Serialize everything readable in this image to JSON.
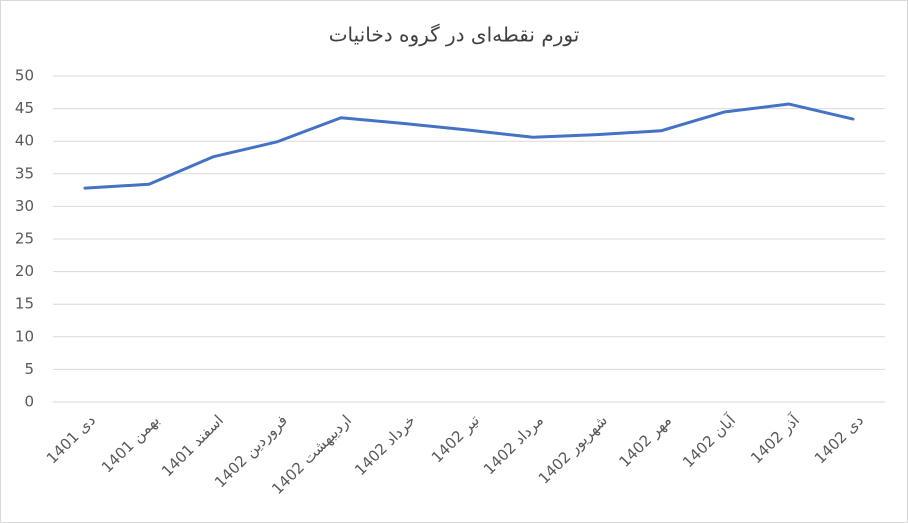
{
  "chart_data": {
    "type": "line",
    "title": "تورم نقطه‌ای در گروه دخانیات",
    "categories": [
      "دی 1401",
      "بهمن 1401",
      "اسفند 1401",
      "فروردین 1402",
      "اردیبهشت 1402",
      "خرداد 1402",
      "تیر 1402",
      "مرداد 1402",
      "شهریور 1402",
      "مهر 1402",
      "آبان 1402",
      "آذر 1402",
      "دی 1402"
    ],
    "values": [
      32.8,
      33.4,
      37.6,
      39.9,
      43.6,
      42.7,
      41.7,
      40.6,
      41.0,
      41.6,
      44.5,
      45.7,
      43.4
    ],
    "color": "#4472c4",
    "ylim": [
      0,
      50
    ],
    "yticks": [
      0,
      5,
      10,
      15,
      20,
      25,
      30,
      35,
      40,
      45,
      50
    ],
    "grid": true
  }
}
